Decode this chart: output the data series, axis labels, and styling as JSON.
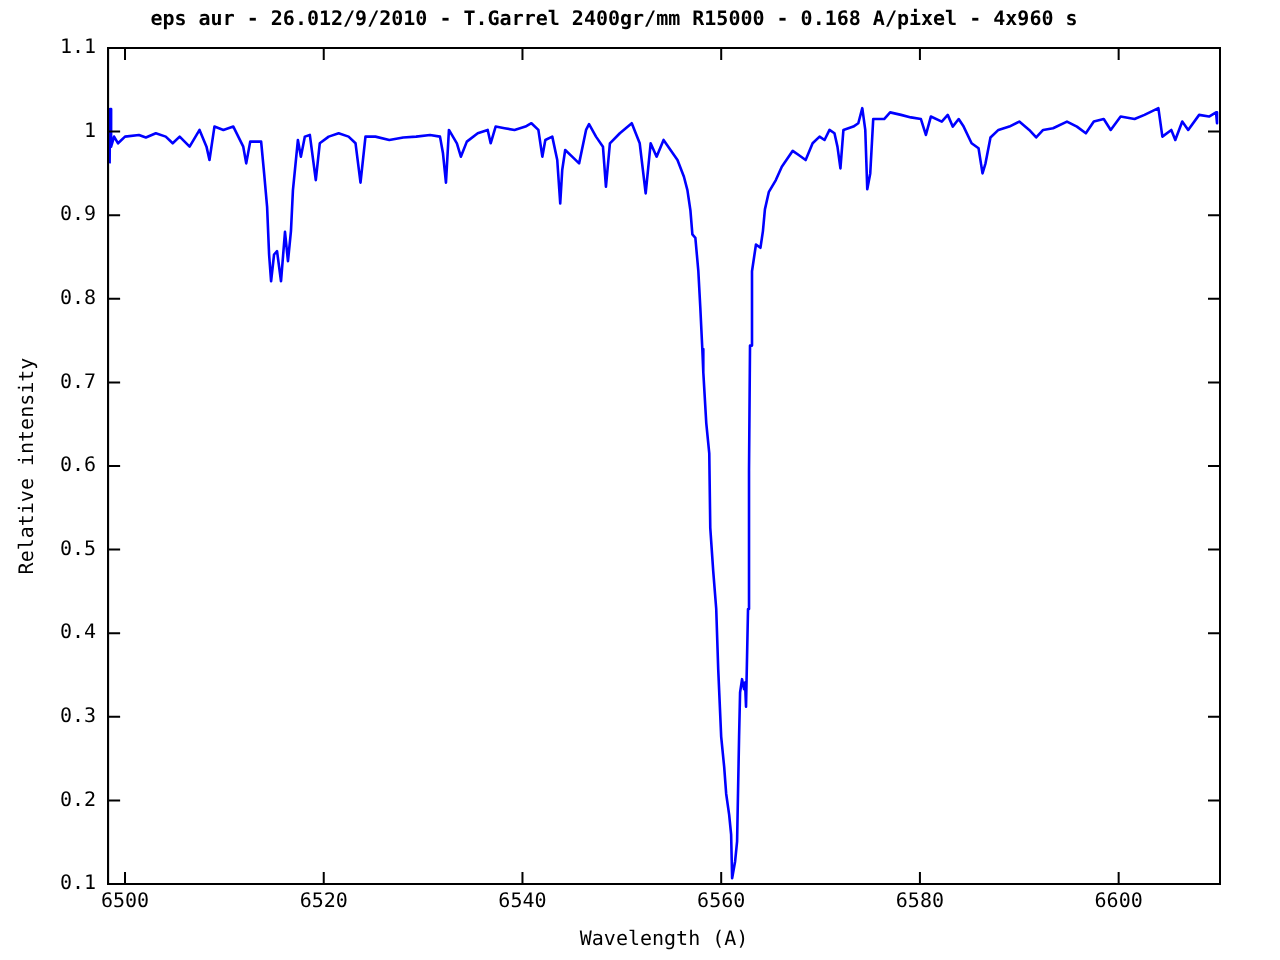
{
  "chart_data": {
    "type": "line",
    "title": "eps aur - 26.012/9/2010 - T.Garrel 2400gr/mm R15000 - 0.168 A/pixel - 4x960 s",
    "xlabel": "Wavelength (A)",
    "ylabel": "Relative intensity",
    "xlim": [
      6498.3,
      6610.2
    ],
    "xticks": [
      6500,
      6520,
      6540,
      6560,
      6580,
      6600
    ],
    "ylim": [
      0.1,
      1.1
    ],
    "yticks": [
      0.1,
      0.2,
      0.3,
      0.4,
      0.5,
      0.6,
      0.7,
      0.8,
      0.9,
      1,
      1.1
    ],
    "legend": false,
    "marker": "none",
    "line_style": "solid",
    "series": [
      {
        "color": "#0000ff",
        "x": [
          6498.45,
          6498.5,
          6498.6,
          6498.9,
          6499.3,
          6500.0,
          6501.4,
          6502.1,
          6503.1,
          6504.1,
          6504.8,
          6505.5,
          6506.5,
          6507.5,
          6508.2,
          6508.5,
          6509.0,
          6509.9,
          6510.9,
          6511.9,
          6512.2,
          6512.6,
          6513.7,
          6514.0,
          6514.3,
          6514.5,
          6514.7,
          6515.0,
          6515.3,
          6515.7,
          6516.1,
          6516.4,
          6516.7,
          6516.9,
          6517.4,
          6517.7,
          6518.1,
          6518.6,
          6519.2,
          6519.6,
          6520.5,
          6521.5,
          6522.5,
          6523.2,
          6523.7,
          6524.2,
          6525.2,
          6526.6,
          6528.0,
          6529.3,
          6530.7,
          6531.7,
          6532.0,
          6532.3,
          6532.6,
          6533.4,
          6533.8,
          6534.4,
          6535.5,
          6536.5,
          6536.8,
          6537.3,
          6538.2,
          6539.2,
          6540.3,
          6540.9,
          6541.6,
          6542.0,
          6542.3,
          6543.0,
          6543.5,
          6543.8,
          6544.0,
          6544.3,
          6545.0,
          6545.7,
          6546.4,
          6546.7,
          6547.4,
          6548.1,
          6548.4,
          6548.8,
          6549.8,
          6551.0,
          6551.8,
          6552.4,
          6552.9,
          6553.5,
          6554.2,
          6554.9,
          6555.6,
          6556.25,
          6556.6,
          6556.9,
          6557.1,
          6557.4,
          6557.7,
          6557.9,
          6558.1,
          6558.2,
          6558.5,
          6558.8,
          6558.9,
          6559.2,
          6559.5,
          6559.7,
          6560.0,
          6560.3,
          6560.5,
          6560.8,
          6561.0,
          6561.1,
          6561.2,
          6561.4,
          6561.6,
          6561.8,
          6561.9,
          6562.1,
          6562.3,
          6562.4,
          6562.5,
          6562.7,
          6562.8,
          6562.9,
          6563.1,
          6563.5,
          6563.95,
          6564.2,
          6564.4,
          6564.8,
          6565.5,
          6566.1,
          6567.2,
          6567.8,
          6568.5,
          6569.2,
          6569.9,
          6570.4,
          6570.9,
          6571.4,
          6571.7,
          6572.0,
          6572.3,
          6573.3,
          6573.8,
          6574.2,
          6574.5,
          6574.7,
          6575.0,
          6575.3,
          6576.4,
          6577.0,
          6578.1,
          6579.1,
          6580.1,
          6580.6,
          6581.1,
          6582.2,
          6582.8,
          6583.3,
          6583.9,
          6584.4,
          6585.2,
          6585.9,
          6586.3,
          6586.6,
          6587.1,
          6587.9,
          6589.0,
          6590.0,
          6591.0,
          6591.7,
          6592.4,
          6593.4,
          6594.8,
          6595.8,
          6596.7,
          6597.5,
          6598.5,
          6599.2,
          6600.2,
          6601.6,
          6602.6,
          6604.0,
          6604.4,
          6605.3,
          6605.7,
          6606.4,
          6607.0,
          6608.1,
          6609.1,
          6609.8,
          6609.9
        ],
        "values": [
          0.962,
          1.027,
          0.982,
          0.994,
          0.986,
          0.994,
          0.996,
          0.993,
          0.998,
          0.994,
          0.986,
          0.994,
          0.982,
          1.002,
          0.982,
          0.966,
          1.006,
          1.002,
          1.006,
          0.982,
          0.962,
          0.988,
          0.988,
          0.95,
          0.91,
          0.853,
          0.821,
          0.853,
          0.857,
          0.821,
          0.88,
          0.845,
          0.881,
          0.93,
          0.99,
          0.97,
          0.994,
          0.996,
          0.942,
          0.986,
          0.994,
          0.998,
          0.994,
          0.986,
          0.939,
          0.994,
          0.994,
          0.99,
          0.993,
          0.994,
          0.996,
          0.994,
          0.974,
          0.939,
          1.002,
          0.986,
          0.97,
          0.988,
          0.998,
          1.002,
          0.986,
          1.006,
          1.004,
          1.002,
          1.006,
          1.01,
          1.002,
          0.97,
          0.99,
          0.994,
          0.966,
          0.914,
          0.954,
          0.978,
          0.97,
          0.962,
          1.002,
          1.009,
          0.994,
          0.982,
          0.934,
          0.986,
          0.998,
          1.01,
          0.986,
          0.926,
          0.986,
          0.97,
          0.99,
          0.978,
          0.966,
          0.946,
          0.93,
          0.906,
          0.877,
          0.873,
          0.833,
          0.789,
          0.74,
          0.712,
          0.651,
          0.615,
          0.526,
          0.474,
          0.429,
          0.357,
          0.276,
          0.24,
          0.208,
          0.183,
          0.159,
          0.107,
          0.107,
          0.127,
          0.151,
          0.276,
          0.329,
          0.345,
          0.333,
          0.341,
          0.312,
          0.429,
          0.595,
          0.744,
          0.833,
          0.865,
          0.861,
          0.881,
          0.907,
          0.928,
          0.942,
          0.958,
          0.977,
          0.972,
          0.966,
          0.986,
          0.994,
          0.99,
          1.002,
          0.998,
          0.982,
          0.956,
          1.002,
          1.006,
          1.01,
          1.028,
          1.002,
          0.931,
          0.95,
          1.015,
          1.015,
          1.023,
          1.02,
          1.017,
          1.015,
          0.996,
          1.018,
          1.012,
          1.02,
          1.006,
          1.015,
          1.006,
          0.986,
          0.98,
          0.95,
          0.962,
          0.993,
          1.002,
          1.006,
          1.012,
          1.002,
          0.993,
          1.002,
          1.004,
          1.012,
          1.006,
          0.998,
          1.012,
          1.015,
          1.002,
          1.018,
          1.015,
          1.02,
          1.028,
          0.994,
          1.002,
          0.99,
          1.012,
          1.002,
          1.02,
          1.018,
          1.023,
          1.01
        ]
      }
    ]
  }
}
